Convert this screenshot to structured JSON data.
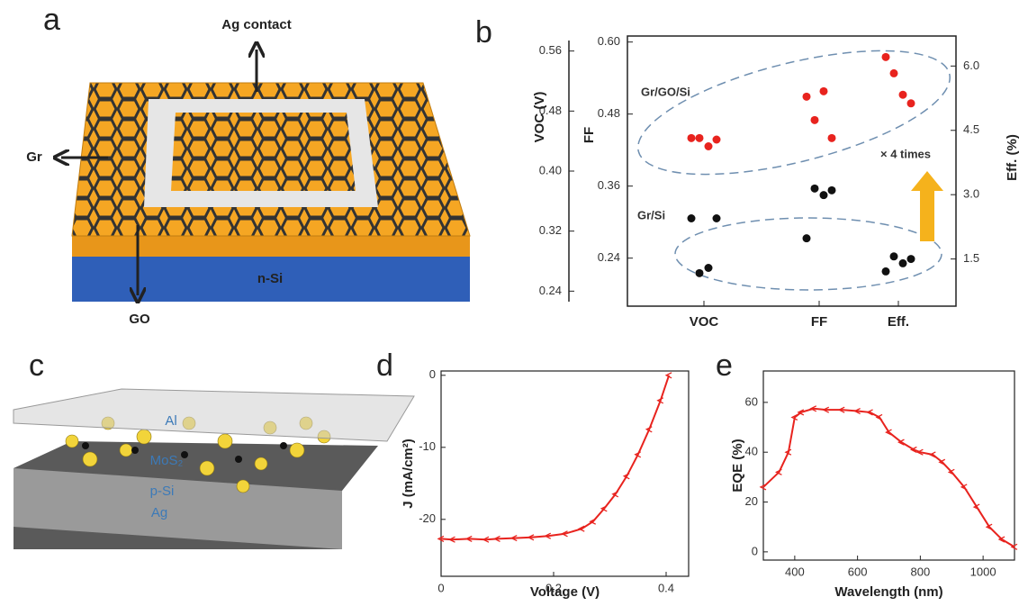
{
  "panel_labels": [
    "a",
    "b",
    "c",
    "d",
    "e"
  ],
  "diagram_a": {
    "labels": {
      "contact": "Ag contact",
      "graphene": "Gr",
      "substrate": "n-Si",
      "oxide": "GO"
    }
  },
  "diagram_c": {
    "labels": {
      "top": "Al",
      "layer": "MoS₂",
      "substrate": "p-Si",
      "bottom": "Ag"
    }
  },
  "chart_data": [
    {
      "type": "scatter",
      "categories": [
        "VOC",
        "FF",
        "Eff."
      ],
      "axes": [
        {
          "label": "VOC (V)",
          "ylim": [
            0.22,
            0.58
          ],
          "yticks": [
            0.24,
            0.32,
            {
              "value": 0.4,
              "label": "0.40"
            },
            0.48,
            0.56
          ]
        },
        {
          "label": "FF",
          "ylim": [
            0.16,
            0.61
          ],
          "yticks": [
            0.24,
            0.36,
            0.48,
            {
              "value": 0.6,
              "label": "0.60"
            }
          ]
        },
        {
          "label": "Eff. (%)",
          "ylim": [
            0.4,
            6.7
          ],
          "yticks": [
            1.5,
            {
              "value": 3,
              "label": "3.0"
            },
            4.5,
            {
              "value": 6,
              "label": "6.0"
            }
          ]
        }
      ],
      "series": [
        {
          "name": "Gr/GO/Si",
          "color": "#e8231e",
          "values": [
            [
              0.444,
              0.444,
              0.433,
              0.442
            ],
            [
              0.509,
              0.47,
              0.518,
              0.44
            ],
            [
              6.21,
              5.83,
              5.33,
              5.13
            ]
          ]
        },
        {
          "name": "Gr/Si",
          "color": "#111111",
          "values": [
            [
              0.337,
              0.264,
              0.271,
              0.337
            ],
            [
              0.273,
              0.356,
              0.345,
              0.353
            ],
            [
              1.21,
              1.56,
              1.4,
              1.5
            ]
          ]
        }
      ],
      "annotation": "× 4 times"
    },
    {
      "type": "line",
      "x_label": "Voltage (V)",
      "y_label": "J (mA/cm²)",
      "color": "#e8231e",
      "xlim": [
        0,
        0.44
      ],
      "ylim": [
        -27.9,
        0.6
      ],
      "xticks": [
        0,
        0.2,
        0.4
      ],
      "yticks": [
        -20,
        -10,
        0
      ],
      "x": [
        0,
        0.02,
        0.05,
        0.08,
        0.1,
        0.13,
        0.16,
        0.19,
        0.22,
        0.25,
        0.27,
        0.29,
        0.31,
        0.33,
        0.35,
        0.37,
        0.39,
        0.405
      ],
      "values": [
        -22.7,
        -22.8,
        -22.7,
        -22.8,
        -22.7,
        -22.6,
        -22.5,
        -22.3,
        -22.0,
        -21.3,
        -20.3,
        -18.5,
        -16.5,
        -14.0,
        -11.0,
        -7.5,
        -3.5,
        0
      ]
    },
    {
      "type": "line",
      "x_label": "Wavelength (nm)",
      "y_label": "EQE (%)",
      "color": "#e8231e",
      "xlim": [
        300,
        1100
      ],
      "ylim": [
        -3.3,
        72.6
      ],
      "xticks": [
        400,
        600,
        800,
        1000
      ],
      "yticks": [
        0,
        20,
        40,
        60
      ],
      "x": [
        300,
        350,
        380,
        400,
        420,
        460,
        500,
        550,
        600,
        640,
        670,
        700,
        740,
        780,
        800,
        840,
        870,
        900,
        940,
        980,
        1020,
        1060,
        1100
      ],
      "values": [
        26,
        32,
        40,
        54,
        56,
        57.5,
        57,
        57,
        56.5,
        56,
        54,
        48,
        44,
        41,
        40,
        39,
        36,
        32,
        26,
        18,
        10,
        5,
        2
      ]
    }
  ]
}
